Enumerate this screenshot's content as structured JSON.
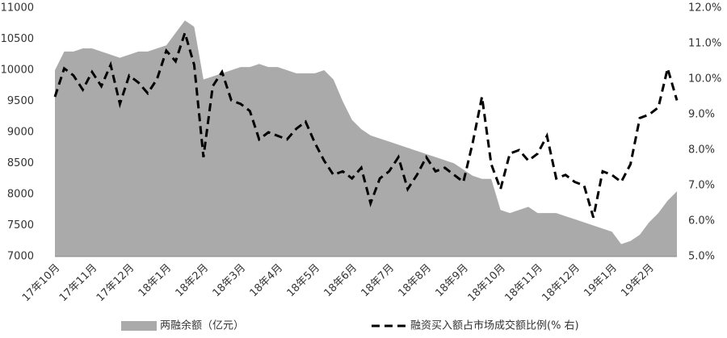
{
  "chart_data": {
    "type": "combo",
    "categories": [
      "17年10月",
      null,
      null,
      null,
      "17年11月",
      null,
      null,
      null,
      "17年12月",
      null,
      null,
      null,
      "18年1月",
      null,
      null,
      null,
      "18年2月",
      null,
      null,
      null,
      "18年3月",
      null,
      null,
      null,
      "18年4月",
      null,
      null,
      null,
      "18年5月",
      null,
      null,
      null,
      "18年6月",
      null,
      null,
      null,
      "18年7月",
      null,
      null,
      null,
      "18年8月",
      null,
      null,
      null,
      "18年9月",
      null,
      null,
      null,
      "18年10月",
      null,
      null,
      null,
      "18年11月",
      null,
      null,
      null,
      "18年12月",
      null,
      null,
      null,
      "19年1月",
      null,
      null,
      null,
      "19年2月",
      null,
      null,
      null
    ],
    "series": [
      {
        "name": "两融余额（亿元）",
        "type": "area",
        "color": "#aaaaaa",
        "values": [
          10000,
          10300,
          10300,
          10350,
          10350,
          10300,
          10250,
          10200,
          10250,
          10300,
          10300,
          10350,
          10400,
          10600,
          10800,
          10700,
          9850,
          9900,
          9950,
          10000,
          10050,
          10050,
          10100,
          10050,
          10050,
          10000,
          9950,
          9950,
          9950,
          10000,
          9850,
          9500,
          9200,
          9050,
          8950,
          8900,
          8850,
          8800,
          8750,
          8700,
          8650,
          8600,
          8550,
          8500,
          8400,
          8300,
          8250,
          8250,
          7750,
          7700,
          7750,
          7800,
          7700,
          7700,
          7700,
          7650,
          7600,
          7550,
          7500,
          7450,
          7400,
          7200,
          7250,
          7350,
          7550,
          7700,
          7900,
          8050
        ]
      },
      {
        "name": "融资买入额占市场成交额比例(% 右)",
        "type": "line",
        "axis": "y2",
        "color": "#000000",
        "values": [
          9.5,
          10.3,
          10.1,
          9.7,
          10.2,
          9.8,
          10.4,
          9.3,
          10.1,
          9.9,
          9.6,
          10.0,
          10.8,
          10.5,
          11.3,
          10.4,
          7.8,
          9.8,
          10.2,
          9.4,
          9.3,
          9.1,
          8.3,
          8.5,
          8.4,
          8.3,
          8.6,
          8.8,
          8.2,
          7.7,
          7.3,
          7.4,
          7.2,
          7.5,
          6.5,
          7.2,
          7.4,
          7.8,
          6.9,
          7.3,
          7.8,
          7.4,
          7.5,
          7.3,
          7.1,
          8.2,
          9.5,
          7.6,
          6.9,
          7.9,
          8.0,
          7.7,
          7.9,
          8.4,
          7.2,
          7.3,
          7.1,
          7.0,
          6.1,
          7.4,
          7.3,
          7.1,
          7.6,
          8.9,
          9.0,
          9.2,
          10.3,
          9.4
        ]
      }
    ],
    "ylim": [
      7000,
      11000
    ],
    "yticks": [
      7000,
      7500,
      8000,
      8500,
      9000,
      9500,
      10000,
      10500,
      11000
    ],
    "y2lim": [
      5,
      12
    ],
    "y2ticks": [
      {
        "value": 5,
        "label": "5.0%"
      },
      {
        "value": 6,
        "label": "6.0%"
      },
      {
        "value": 7,
        "label": "7.0%"
      },
      {
        "value": 8,
        "label": "8.0%"
      },
      {
        "value": 9,
        "label": "9.0%"
      },
      {
        "value": 10,
        "label": "10.0%"
      },
      {
        "value": 11,
        "label": "11.0%"
      },
      {
        "value": 12,
        "label": "12.0%"
      }
    ],
    "legend": "bottom"
  }
}
